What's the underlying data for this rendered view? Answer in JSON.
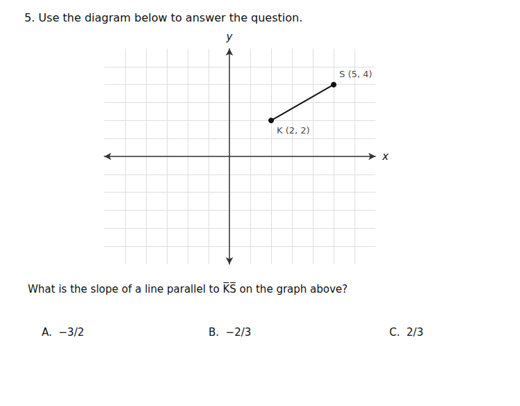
{
  "chart_data": {
    "type": "line",
    "title": "5. Use the diagram below to answer the question.",
    "xlabel": "x",
    "ylabel": "y",
    "x": [
      2,
      5
    ],
    "values": [
      2,
      4
    ],
    "color": "#111111",
    "marker": "circle",
    "xlim": [
      -6,
      7
    ],
    "xticks": [
      -5,
      -4,
      -3,
      -2,
      -1,
      0,
      1,
      2,
      3,
      4,
      5,
      6
    ],
    "ylim": [
      -6,
      6
    ],
    "yticks": [
      -5,
      -4,
      -3,
      -2,
      -1,
      0,
      1,
      2,
      3,
      4,
      5
    ],
    "grid": true,
    "tick_labels": false,
    "annotations": [
      {
        "text": "K (2, 2)",
        "x": 2,
        "y": 2
      },
      {
        "text": "S (5, 4)",
        "x": 5,
        "y": 4
      },
      {
        "text": "What is the slope of a line parallel to K̅S̅ on the graph above?"
      },
      {
        "text": "A.  −3/2"
      },
      {
        "text": "B.  −2/3"
      },
      {
        "text": "C.  2/3"
      }
    ]
  }
}
